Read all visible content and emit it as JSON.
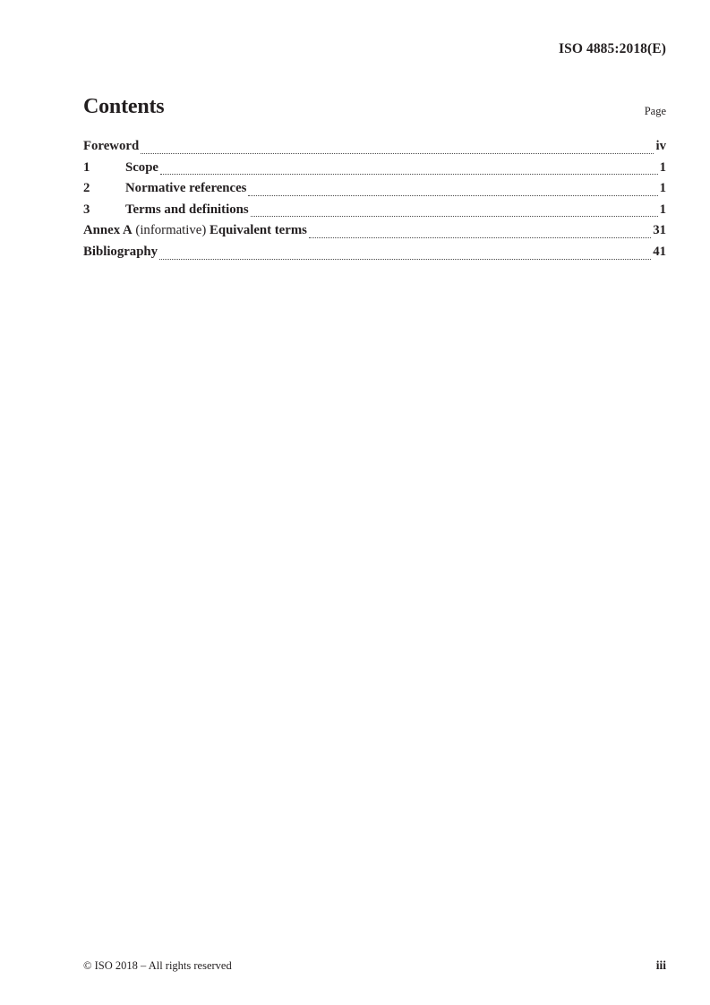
{
  "header": {
    "document_reference": "ISO 4885:2018(E)"
  },
  "contents": {
    "title": "Contents",
    "page_column_label": "Page",
    "items": [
      {
        "num": "",
        "pre": "Foreword",
        "mid": "",
        "post": "",
        "page": "iv"
      },
      {
        "num": "1",
        "pre": "Scope",
        "mid": "",
        "post": "",
        "page": "1"
      },
      {
        "num": "2",
        "pre": "Normative references",
        "mid": "",
        "post": "",
        "page": "1"
      },
      {
        "num": "3",
        "pre": "Terms and definitions",
        "mid": "",
        "post": "",
        "page": "1"
      },
      {
        "num": "",
        "pre": "Annex A",
        "mid": " (informative) ",
        "post": "Equivalent terms",
        "page": "31"
      },
      {
        "num": "",
        "pre": "Bibliography",
        "mid": "",
        "post": "",
        "page": "41"
      }
    ]
  },
  "footer": {
    "copyright": "© ISO 2018 – All rights reserved",
    "page_number": "iii"
  },
  "colors": {
    "text": "#231f20",
    "leader_dots": "#4b4b4b",
    "background": "#ffffff"
  }
}
